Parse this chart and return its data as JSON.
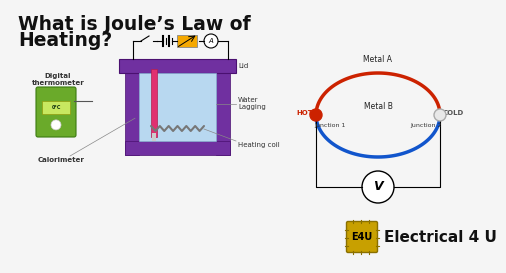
{
  "bg_color": "#f5f5f5",
  "title_line1": "What is Joule’s Law of",
  "title_line2": "Heating?",
  "title_color": "#111111",
  "title_fontsize": 13.5,
  "left_labels": {
    "digital_thermometer": "Digital\nthermometer",
    "calorimeter": "Calorimeter",
    "lid": "Lid",
    "water_lagging": "Water\nLagging",
    "heating_coil": "Heating coil"
  },
  "right_labels": {
    "metal_a": "Metal A",
    "metal_b": "Metal B",
    "hot": "HOT",
    "cold": "COLD",
    "junction1": "Junction 1",
    "junction2": "Junction 2",
    "voltmeter": "V"
  },
  "brand_text": "Electrical 4 U",
  "brand_color": "#111111",
  "brand_fontsize": 11,
  "calorimeter_color": "#7030a0",
  "water_color": "#b8d8f0",
  "thermometer_body_color": "#6aaa2a",
  "circuit_red": "#cc2200",
  "circuit_blue": "#1155cc",
  "hot_dot_color": "#cc2200",
  "cold_dot_color": "#e8e8e8",
  "battery_color": "#f5a800",
  "chip_color": "#c8a000",
  "label_fontsize": 5,
  "label_color": "#333333"
}
